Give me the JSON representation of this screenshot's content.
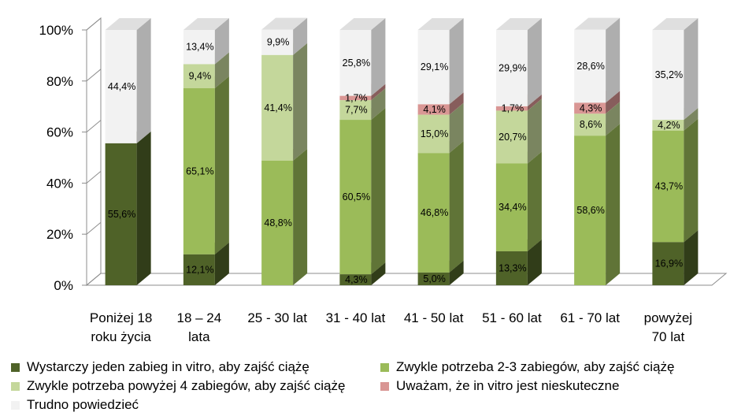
{
  "chart_data": {
    "type": "bar",
    "stacked": true,
    "style": "3d-stacked-100-percent",
    "categories": [
      [
        "Poniżej 18",
        "roku życia"
      ],
      [
        "18 – 24",
        "lata"
      ],
      [
        "25 - 30 lat"
      ],
      [
        "31 - 40 lat"
      ],
      [
        "41 - 50 lat"
      ],
      [
        "51 - 60 lat"
      ],
      [
        "61 - 70 lat"
      ],
      [
        "powyżej",
        "70 lat"
      ]
    ],
    "series": [
      {
        "name": "Wystarczy jeden zabieg in vitro, aby zajść ciążę",
        "color": "#4f6228",
        "values": [
          55.6,
          12.1,
          0,
          4.3,
          5.0,
          13.3,
          0,
          16.9
        ],
        "labels": [
          "55,6%",
          "12,1%",
          "",
          "4,3%",
          "5,0%",
          "13,3%",
          "",
          "16,9%"
        ]
      },
      {
        "name": "Zwykle potrzeba 2-3 zabiegów, aby zajść ciążę",
        "color": "#9bbb59",
        "values": [
          0,
          65.1,
          48.8,
          60.5,
          46.8,
          34.4,
          58.6,
          43.7
        ],
        "labels": [
          "",
          "65,1%",
          "48,8%",
          "60,5%",
          "46,8%",
          "34,4%",
          "58,6%",
          "43,7%"
        ]
      },
      {
        "name": "Zwykle potrzeba powyżej 4 zabiegów, aby zajść ciążę",
        "color": "#c4d79b",
        "values": [
          0,
          9.4,
          41.4,
          7.7,
          15.0,
          20.7,
          8.6,
          4.2
        ],
        "labels": [
          "",
          "9,4%",
          "41,4%",
          "7,7%",
          "15,0%",
          "20,7%",
          "8,6%",
          "4,2%"
        ]
      },
      {
        "name": "Uważam, że in vitro jest nieskuteczne",
        "color": "#d99694",
        "values": [
          0,
          0,
          0,
          1.7,
          4.1,
          1.7,
          4.3,
          0
        ],
        "labels": [
          "",
          "",
          "",
          "1,7%",
          "4,1%",
          "1,7%",
          "4,3%",
          ""
        ]
      },
      {
        "name": "Trudno powiedzieć",
        "color": "#f2f2f2",
        "values": [
          44.4,
          13.4,
          9.9,
          25.8,
          29.1,
          29.9,
          28.6,
          35.2
        ],
        "labels": [
          "44,4%",
          "13,4%",
          "9,9%",
          "25,8%",
          "29,1%",
          "29,9%",
          "28,6%",
          "35,2%"
        ]
      }
    ],
    "ylim": [
      0,
      100
    ],
    "yticks": [
      "0%",
      "20%",
      "40%",
      "60%",
      "80%",
      "100%"
    ],
    "grid": false,
    "legend_position": "bottom"
  }
}
